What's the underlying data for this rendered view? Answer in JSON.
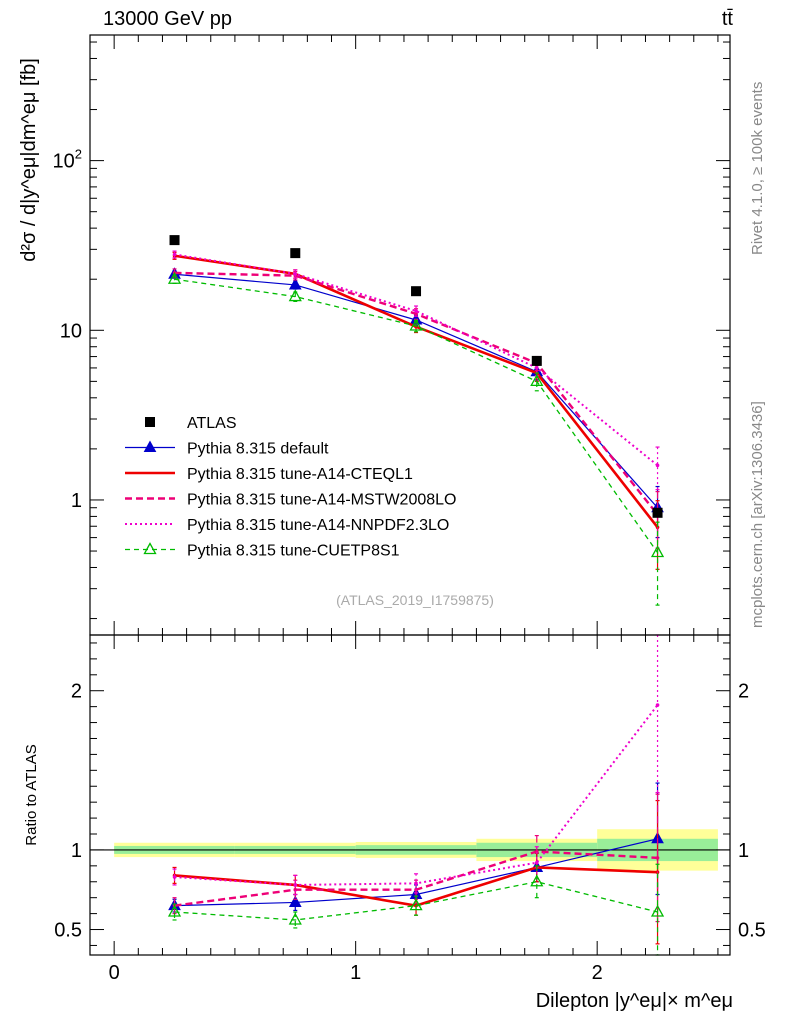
{
  "header": {
    "energy_label": "13000 GeV pp",
    "process_label": "tt̄"
  },
  "side_labels": {
    "rivet": "Rivet 4.1.0, ≥ 100k events",
    "mcplots": "mcplots.cern.ch [arXiv:1306.3436]"
  },
  "analysis_id": "(ATLAS_2019_I1759875)",
  "chart_data": [
    {
      "type": "line",
      "title": "Dilepton |y^eμ| × m^eμ",
      "ylabel": "d²σ / d|y^eμ|dm^eμ [fb]",
      "yscale": "log",
      "ylim": [
        0.16,
        550
      ],
      "xlim": [
        -0.1,
        2.55
      ],
      "x": [
        0.25,
        0.75,
        1.25,
        1.75,
        2.25
      ],
      "ytick_labels": [
        "1",
        "10",
        "10²"
      ],
      "ytick_values": [
        1,
        10,
        100
      ],
      "series": [
        {
          "name": "ATLAS",
          "color": "#000000",
          "style": "data",
          "values": [
            34,
            28.5,
            17,
            6.6,
            0.84
          ],
          "errors": [
            0.5,
            0.5,
            0.3,
            0.15,
            0.02
          ]
        },
        {
          "name": "Pythia 8.315 default",
          "color": "#0000cc",
          "style": "solid-thin",
          "marker": "triangle-filled",
          "values": [
            21.4,
            18.5,
            11.5,
            5.7,
            0.9
          ],
          "errors": [
            1.0,
            1.0,
            0.8,
            0.6,
            0.3
          ]
        },
        {
          "name": "Pythia 8.315 tune-A14-CTEQL1",
          "color": "#ee0000",
          "style": "solid-thick",
          "marker": "none",
          "values": [
            27.5,
            21.5,
            10.5,
            5.6,
            0.69
          ],
          "errors": [
            1.3,
            1.2,
            0.8,
            0.6,
            0.3
          ]
        },
        {
          "name": "Pythia 8.315 tune-A14-MSTW2008LO",
          "color": "#ee0077",
          "style": "dashed",
          "marker": "none",
          "values": [
            21.8,
            21.0,
            12.5,
            6.4,
            0.82
          ],
          "errors": [
            1.2,
            1.2,
            0.9,
            0.6,
            0.3
          ]
        },
        {
          "name": "Pythia 8.315 tune-A14-NNPDF2.3LO",
          "color": "#ee00cc",
          "style": "dotted",
          "marker": "none",
          "values": [
            28.0,
            21.5,
            13.0,
            6.0,
            1.6
          ],
          "errors": [
            1.3,
            1.2,
            0.9,
            0.6,
            0.45
          ]
        },
        {
          "name": "Pythia 8.315 tune-CUETP8S1",
          "color": "#00bb00",
          "style": "dashed",
          "marker": "triangle-open",
          "values": [
            20.0,
            15.8,
            10.6,
            5.0,
            0.49
          ],
          "errors": [
            1.1,
            1.0,
            0.8,
            0.6,
            0.25
          ]
        }
      ]
    },
    {
      "type": "line",
      "ylabel": "Ratio to ATLAS",
      "xlabel": "Dilepton |y^eμ|× m^eμ",
      "ylim": [
        0.34,
        2.35
      ],
      "xlim": [
        -0.1,
        2.55
      ],
      "xtick_labels": [
        "0",
        "1",
        "2"
      ],
      "xtick_values": [
        0,
        1,
        2
      ],
      "ytick_labels": [
        "0.5",
        "1",
        "2"
      ],
      "ytick_values": [
        0.5,
        1,
        2
      ],
      "x": [
        0.25,
        0.75,
        1.25,
        1.75,
        2.25
      ],
      "bands": {
        "edges": [
          0,
          0.5,
          1.0,
          1.5,
          2.0,
          2.5
        ],
        "green_halfwidth": [
          0.025,
          0.025,
          0.03,
          0.045,
          0.07
        ],
        "yellow_halfwidth": [
          0.045,
          0.045,
          0.05,
          0.07,
          0.13
        ],
        "green_color": "#99ee99",
        "yellow_color": "#ffff99"
      },
      "series": [
        {
          "name": "Pythia 8.315 default",
          "color": "#0000cc",
          "style": "solid-thin",
          "marker": "triangle-filled",
          "values": [
            0.65,
            0.67,
            0.72,
            0.89,
            1.07
          ],
          "errors": [
            0.04,
            0.05,
            0.06,
            0.09,
            0.35
          ]
        },
        {
          "name": "Pythia 8.315 tune-A14-CTEQL1",
          "color": "#ee0000",
          "style": "solid-thick",
          "marker": "none",
          "values": [
            0.84,
            0.78,
            0.65,
            0.89,
            0.86
          ],
          "errors": [
            0.05,
            0.06,
            0.06,
            0.09,
            0.45
          ]
        },
        {
          "name": "Pythia 8.315 tune-A14-MSTW2008LO",
          "color": "#ee0077",
          "style": "dashed",
          "marker": "none",
          "values": [
            0.65,
            0.75,
            0.75,
            0.99,
            0.95
          ],
          "errors": [
            0.05,
            0.06,
            0.06,
            0.1,
            0.4
          ]
        },
        {
          "name": "Pythia 8.315 tune-A14-NNPDF2.3LO",
          "color": "#ee00cc",
          "style": "dotted",
          "marker": "none",
          "values": [
            0.83,
            0.78,
            0.79,
            0.92,
            1.91
          ],
          "errors": [
            0.05,
            0.06,
            0.06,
            0.1,
            0.55
          ]
        },
        {
          "name": "Pythia 8.315 tune-CUETP8S1",
          "color": "#00bb00",
          "style": "dashed",
          "marker": "triangle-open",
          "values": [
            0.61,
            0.56,
            0.65,
            0.8,
            0.61
          ],
          "errors": [
            0.05,
            0.05,
            0.06,
            0.1,
            0.3
          ]
        }
      ]
    }
  ]
}
